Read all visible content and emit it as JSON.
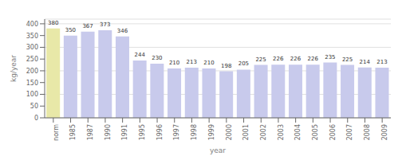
{
  "chart_data": {
    "type": "bar",
    "xlabel": "year",
    "ylabel": "kg/year",
    "categories": [
      "norm",
      "1985",
      "1987",
      "1990",
      "1991",
      "1995",
      "1996",
      "1997",
      "1998",
      "1999",
      "2000",
      "2001",
      "2002",
      "2003",
      "2004",
      "2005",
      "2006",
      "2007",
      "2008",
      "2009"
    ],
    "values": [
      380,
      350,
      367,
      373,
      346,
      244,
      230,
      210,
      213,
      210,
      198,
      205,
      225,
      226,
      226,
      226,
      235,
      225,
      214,
      213
    ],
    "colors": [
      "#e8e8a8",
      "#c8caec",
      "#c8caec",
      "#c8caec",
      "#c8caec",
      "#c8caec",
      "#c8caec",
      "#c8caec",
      "#c8caec",
      "#c8caec",
      "#c8caec",
      "#c8caec",
      "#c8caec",
      "#c8caec",
      "#c8caec",
      "#c8caec",
      "#c8caec",
      "#c8caec",
      "#c8caec",
      "#c8caec"
    ],
    "ylim": [
      0,
      420
    ],
    "yticks": [
      0,
      50,
      100,
      150,
      200,
      250,
      300,
      350,
      400
    ],
    "grid": true,
    "data_labels": true
  }
}
